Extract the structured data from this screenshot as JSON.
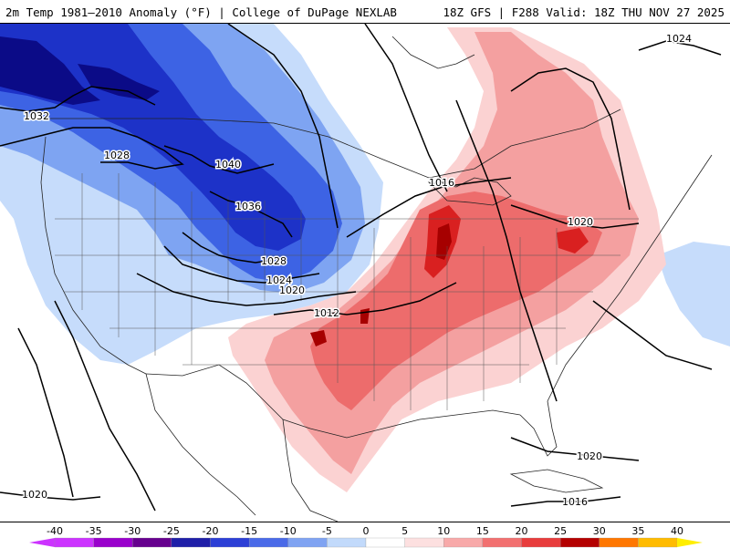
{
  "header": {
    "left_title": "2m Temp 1981–2010 Anomaly (°F) | College of DuPage NEXLAB",
    "right_title": "18Z GFS | F288 Valid: 18Z THU NOV 27 2025"
  },
  "isobar_labels": [
    "1032",
    "1028",
    "1040",
    "1036",
    "1028",
    "1024",
    "1020",
    "1016",
    "1012",
    "1020",
    "1024",
    "1020",
    "1016",
    "1020"
  ],
  "colorbar": {
    "ticks": [
      "-40",
      "-35",
      "-30",
      "-25",
      "-20",
      "-15",
      "-10",
      "-5",
      "0",
      "5",
      "10",
      "15",
      "20",
      "25",
      "30",
      "35",
      "40"
    ],
    "colors": [
      "#cc33ff",
      "#9900cc",
      "#66008e",
      "#1f1fa8",
      "#2c3fd6",
      "#4a6ae8",
      "#7fa3f2",
      "#c2dafb",
      "#ffffff",
      "#fde0e0",
      "#f8a9a9",
      "#f27070",
      "#e83c3c",
      "#b40000",
      "#ff7700",
      "#ffbb00",
      "#ffee00"
    ]
  },
  "colors": {
    "coldest": "#0b0b87",
    "very_cold": "#1d32c8",
    "cold": "#3d63e4",
    "cool": "#7ea4f2",
    "slightly_cool": "#c6dcfb",
    "slightly_warm": "#fbd2d2",
    "warm": "#f4a0a0",
    "warmer": "#ed6c6c",
    "hot": "#d92020",
    "hottest": "#a60000"
  }
}
